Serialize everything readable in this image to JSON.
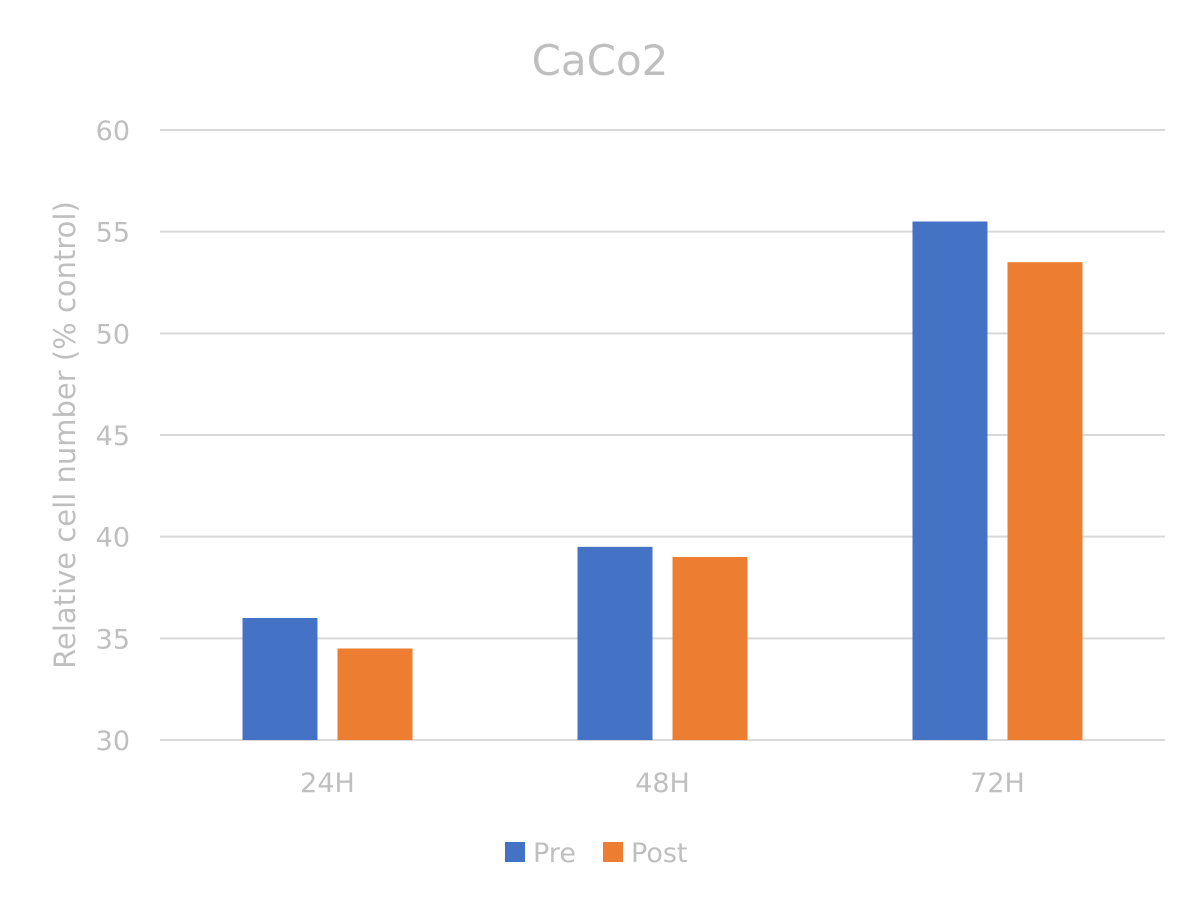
{
  "chart_data": {
    "type": "bar",
    "title": "CaCo2",
    "xlabel": "",
    "ylabel": "Relative cell number (% control)",
    "categories": [
      "24H",
      "48H",
      "72H"
    ],
    "series": [
      {
        "name": "Pre",
        "values": [
          36,
          39.5,
          55.5
        ],
        "color": "#4472c4"
      },
      {
        "name": "Post",
        "values": [
          34.5,
          39,
          53.5
        ],
        "color": "#ed7d31"
      }
    ],
    "ylim": [
      30,
      60
    ],
    "yticks": [
      30,
      35,
      40,
      45,
      50,
      55,
      60
    ],
    "grid": true,
    "legend": "bottom-center"
  }
}
